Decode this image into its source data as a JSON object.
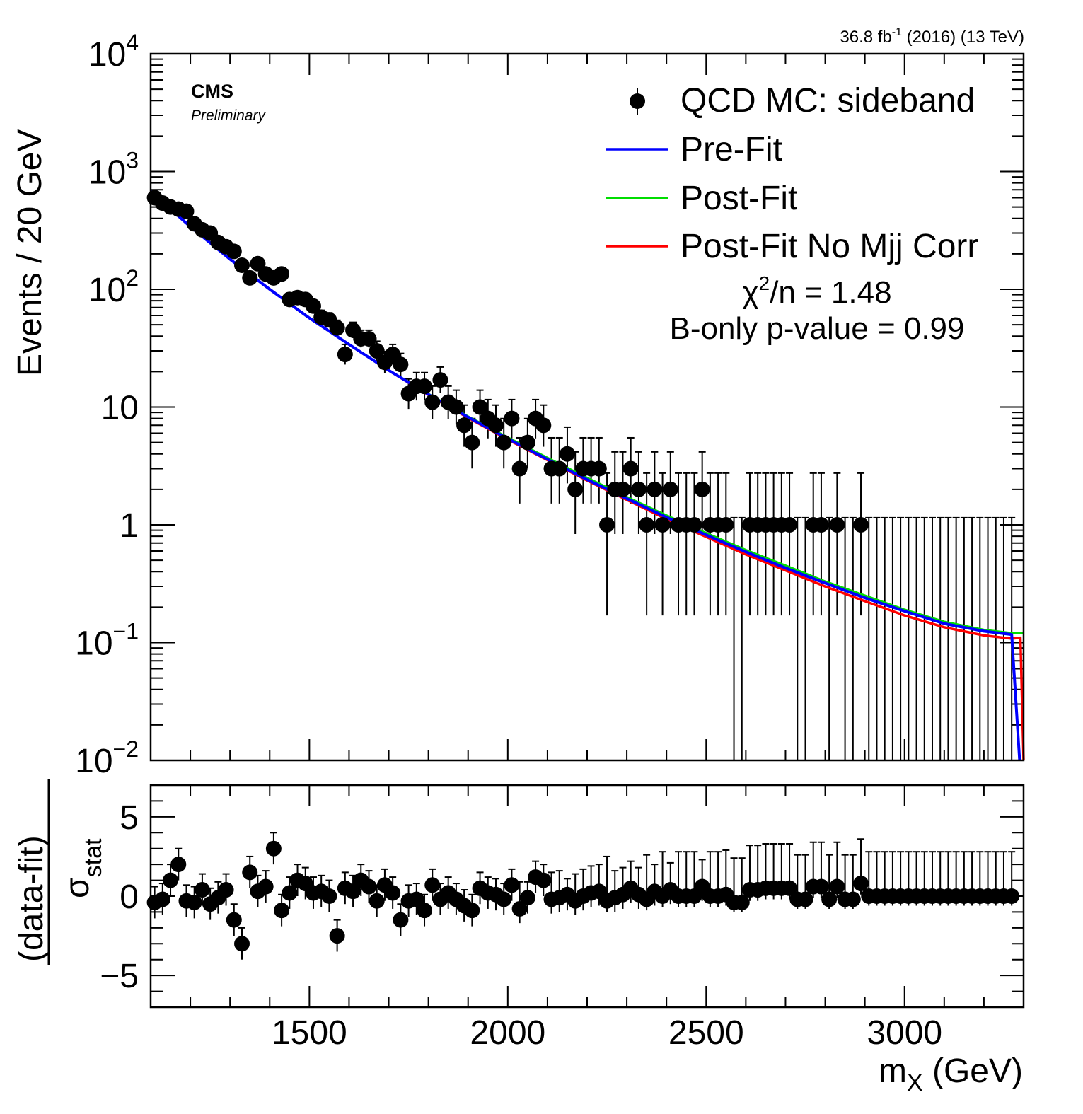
{
  "header": {
    "lumi_value": "36.8 fb",
    "lumi_sup": "-1",
    "lumi_rest": " (2016) (13 TeV)",
    "cms": "CMS",
    "preliminary": "Preliminary"
  },
  "chart_data": [
    {
      "type": "scatter",
      "ylabel": "Events / 20 GeV",
      "xlim": [
        1100,
        3300
      ],
      "ylim": [
        0.01,
        10000
      ],
      "log_y": true,
      "y_tick_labels": [
        {
          "value": 10000,
          "base": "10",
          "exp": "4"
        },
        {
          "value": 1000,
          "base": "10",
          "exp": "3"
        },
        {
          "value": 100,
          "base": "10",
          "exp": "2"
        },
        {
          "value": 10,
          "base": "10",
          "exp": ""
        },
        {
          "value": 1,
          "base": "1",
          "exp": ""
        },
        {
          "value": 0.1,
          "base": "10",
          "exp": "−1"
        },
        {
          "value": 0.01,
          "base": "10",
          "exp": "−2"
        }
      ],
      "legend": {
        "placement": "top-right",
        "entries": [
          {
            "label": "QCD MC: sideband",
            "kind": "marker",
            "color": "#000000"
          },
          {
            "label": "Pre-Fit",
            "kind": "line",
            "color": "#0000ff"
          },
          {
            "label": "Post-Fit",
            "kind": "line",
            "color": "#00dd00"
          },
          {
            "label": "Post-Fit No Mjj Corr",
            "kind": "line",
            "color": "#ff0000"
          }
        ]
      },
      "chi2": {
        "prefix": "χ",
        "sup": "2",
        "rest": "/n = 1.48"
      },
      "pvalue": "B-only p-value = 0.99",
      "series": [
        {
          "name": "QCD MC: sideband",
          "x": [
            1110,
            1130,
            1150,
            1170,
            1190,
            1210,
            1230,
            1250,
            1270,
            1290,
            1310,
            1330,
            1350,
            1370,
            1390,
            1410,
            1430,
            1450,
            1470,
            1490,
            1510,
            1530,
            1550,
            1570,
            1590,
            1610,
            1630,
            1650,
            1670,
            1690,
            1710,
            1730,
            1750,
            1770,
            1790,
            1810,
            1830,
            1850,
            1870,
            1890,
            1910,
            1930,
            1950,
            1970,
            1990,
            2010,
            2030,
            2050,
            2070,
            2090,
            2110,
            2130,
            2150,
            2170,
            2190,
            2210,
            2230,
            2250,
            2270,
            2290,
            2310,
            2330,
            2350,
            2370,
            2390,
            2410,
            2430,
            2450,
            2470,
            2490,
            2510,
            2530,
            2550,
            2570,
            2590,
            2610,
            2630,
            2650,
            2670,
            2690,
            2710,
            2730,
            2750,
            2770,
            2790,
            2810,
            2830,
            2850,
            2870,
            2890,
            2910,
            2930,
            2950,
            2970,
            2990,
            3010,
            3030,
            3050,
            3070,
            3090,
            3110,
            3130,
            3150,
            3170,
            3190,
            3210,
            3230,
            3250,
            3270
          ],
          "y": [
            600,
            540,
            500,
            480,
            460,
            360,
            320,
            300,
            250,
            230,
            210,
            160,
            125,
            165,
            135,
            125,
            135,
            82,
            85,
            82,
            72,
            58,
            55,
            47,
            28,
            45,
            38,
            38,
            30,
            24,
            28,
            23,
            13,
            15,
            15,
            11,
            17,
            11,
            10,
            7,
            5,
            10,
            8,
            7,
            5,
            8,
            3,
            5,
            8,
            7,
            3,
            3,
            4,
            2,
            3,
            3,
            3,
            1,
            2,
            2,
            3,
            2,
            1,
            2,
            1,
            2,
            1,
            1,
            1,
            2,
            1,
            1,
            1,
            0,
            0,
            1,
            1,
            1,
            1,
            1,
            1,
            0,
            0,
            1,
            1,
            0,
            1,
            0,
            0,
            1,
            0,
            0,
            0,
            0,
            0,
            0,
            0,
            0,
            0,
            0,
            0,
            0,
            0,
            0,
            0,
            0,
            0,
            0,
            0
          ]
        },
        {
          "name": "Pre-Fit",
          "x": [
            1100,
            1200,
            1300,
            1400,
            1500,
            1600,
            1700,
            1800,
            1900,
            2000,
            2100,
            2200,
            2300,
            2400,
            2500,
            2600,
            2700,
            2800,
            2900,
            3000,
            3100,
            3200,
            3270,
            3290
          ],
          "y": [
            680,
            340,
            180,
            100,
            57,
            34,
            20.5,
            12.8,
            8.2,
            5.4,
            3.6,
            2.42,
            1.67,
            1.16,
            0.82,
            0.59,
            0.43,
            0.32,
            0.24,
            0.185,
            0.145,
            0.125,
            0.117,
            0.01
          ]
        },
        {
          "name": "Post-Fit",
          "x": [
            1100,
            1200,
            1300,
            1400,
            1500,
            1600,
            1700,
            1800,
            1900,
            2000,
            2100,
            2200,
            2300,
            2400,
            2500,
            2600,
            2700,
            2800,
            2900,
            3000,
            3100,
            3200,
            3270,
            3300
          ],
          "y": [
            680,
            340,
            180,
            100,
            57,
            34,
            20.5,
            12.9,
            8.3,
            5.5,
            3.7,
            2.5,
            1.72,
            1.2,
            0.85,
            0.61,
            0.45,
            0.33,
            0.25,
            0.19,
            0.15,
            0.128,
            0.12,
            0.12
          ]
        },
        {
          "name": "Post-Fit No Mjj Corr",
          "x": [
            1100,
            1200,
            1300,
            1400,
            1500,
            1600,
            1700,
            1800,
            1900,
            2000,
            2100,
            2200,
            2300,
            2400,
            2500,
            2600,
            2700,
            2800,
            2900,
            3000,
            3100,
            3200,
            3270,
            3292,
            3300
          ],
          "y": [
            680,
            340,
            180,
            100,
            57,
            34,
            20.5,
            12.7,
            8.1,
            5.3,
            3.55,
            2.38,
            1.63,
            1.12,
            0.79,
            0.56,
            0.41,
            0.3,
            0.225,
            0.17,
            0.135,
            0.115,
            0.108,
            0.11,
            0.01
          ]
        }
      ]
    },
    {
      "type": "scatter",
      "xlabel": "m",
      "xlabel_sub": "X",
      "xlabel_rest": " (GeV)",
      "ylabel_numerator": "(data-fit)",
      "ylabel_denominator": "σ",
      "ylabel_denominator_sub": "stat",
      "xlim": [
        1100,
        3300
      ],
      "ylim": [
        -7,
        7
      ],
      "x_ticks": [
        "1500",
        "2000",
        "2500",
        "3000"
      ],
      "y_ticks": [
        "5",
        "0",
        "−5"
      ],
      "series": [
        {
          "name": "pull",
          "x": [
            1110,
            1130,
            1150,
            1170,
            1190,
            1210,
            1230,
            1250,
            1270,
            1290,
            1310,
            1330,
            1350,
            1370,
            1390,
            1410,
            1430,
            1450,
            1470,
            1490,
            1510,
            1530,
            1550,
            1570,
            1590,
            1610,
            1630,
            1650,
            1670,
            1690,
            1710,
            1730,
            1750,
            1770,
            1790,
            1810,
            1830,
            1850,
            1870,
            1890,
            1910,
            1930,
            1950,
            1970,
            1990,
            2010,
            2030,
            2050,
            2070,
            2090,
            2110,
            2130,
            2150,
            2170,
            2190,
            2210,
            2230,
            2250,
            2270,
            2290,
            2310,
            2330,
            2350,
            2370,
            2390,
            2410,
            2430,
            2450,
            2470,
            2490,
            2510,
            2530,
            2550,
            2570,
            2590,
            2610,
            2630,
            2650,
            2670,
            2690,
            2710,
            2730,
            2750,
            2770,
            2790,
            2810,
            2830,
            2850,
            2870,
            2890,
            2910,
            2930,
            2950,
            2970,
            2990,
            3010,
            3030,
            3050,
            3070,
            3090,
            3110,
            3130,
            3150,
            3170,
            3190,
            3210,
            3230,
            3250,
            3270
          ],
          "y": [
            -0.4,
            -0.2,
            1,
            2,
            -0.3,
            -0.4,
            0.4,
            -0.5,
            -0.1,
            0.4,
            -1.5,
            -3,
            1.5,
            0.3,
            0.6,
            3,
            -0.9,
            0.2,
            1,
            0.8,
            0.2,
            0.3,
            0,
            -2.5,
            0.5,
            0.3,
            1,
            0.6,
            -0.3,
            0.7,
            0.2,
            -1.5,
            -0.3,
            -0.2,
            -0.9,
            0.7,
            -0.2,
            0.2,
            -0.2,
            -0.6,
            -0.9,
            0.5,
            0.2,
            0.1,
            -0.2,
            0.7,
            -0.8,
            -0.1,
            1.2,
            1,
            -0.2,
            -0.1,
            0.1,
            -0.3,
            0,
            0.2,
            0.3,
            -0.3,
            -0.1,
            0.1,
            0.5,
            0.1,
            -0.2,
            0.3,
            0,
            0.4,
            0,
            0,
            0,
            0.6,
            0,
            0,
            0.1,
            -0.4,
            -0.4,
            0.4,
            0.4,
            0.5,
            0.5,
            0.5,
            0.5,
            -0.2,
            -0.2,
            0.6,
            0.6,
            -0.2,
            0.6,
            -0.2,
            -0.2,
            0.8,
            0,
            0,
            0,
            0,
            0,
            0,
            0,
            0,
            0,
            0,
            0,
            0,
            0,
            0,
            0,
            0,
            0,
            0,
            0
          ]
        }
      ]
    }
  ]
}
